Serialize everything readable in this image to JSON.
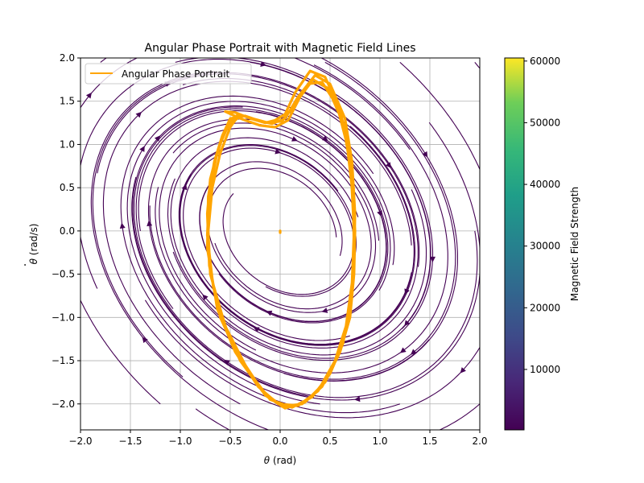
{
  "chart_data": {
    "type": "line",
    "title": "Angular Phase Portrait with Magnetic Field Lines",
    "xlabel_symbol": "θ",
    "xlabel_unit": "(rad)",
    "ylabel_symbol": "θ",
    "ylabel_dot": "·",
    "ylabel_unit": "(rad/s)",
    "xlim": [
      -2.0,
      2.0
    ],
    "ylim": [
      -2.3,
      2.0
    ],
    "x_ticks": [
      -2.0,
      -1.5,
      -1.0,
      -0.5,
      0.0,
      0.5,
      1.0,
      1.5,
      2.0
    ],
    "x_tick_labels": [
      "−2.0",
      "−1.5",
      "−1.0",
      "−0.5",
      "0.0",
      "0.5",
      "1.0",
      "1.5",
      "2.0"
    ],
    "y_ticks": [
      -2.0,
      -1.5,
      -1.0,
      -0.5,
      0.0,
      0.5,
      1.0,
      1.5,
      2.0
    ],
    "y_tick_labels": [
      "−2.0",
      "−1.5",
      "−1.0",
      "−0.5",
      "0.0",
      "0.5",
      "1.0",
      "1.5",
      "2.0"
    ],
    "grid": true,
    "legend": {
      "placement": "top-left",
      "entries": [
        "Angular Phase Portrait"
      ]
    },
    "series": [
      {
        "name": "Angular Phase Portrait",
        "color": "#FFA500",
        "points": [
          [
            0.0,
            0.0
          ],
          [
            0.0,
            -0.02
          ],
          [
            -0.4,
            1.3
          ],
          [
            -0.55,
            1.38
          ],
          [
            -0.45,
            1.37
          ],
          [
            -0.3,
            1.3
          ],
          [
            -0.15,
            1.25
          ],
          [
            -0.05,
            1.28
          ],
          [
            0.05,
            1.35
          ],
          [
            0.15,
            1.6
          ],
          [
            0.3,
            1.85
          ],
          [
            0.45,
            1.78
          ],
          [
            0.6,
            1.4
          ],
          [
            0.68,
            1.0
          ],
          [
            0.73,
            0.5
          ],
          [
            0.75,
            0.0
          ],
          [
            0.74,
            -0.5
          ],
          [
            0.7,
            -1.0
          ],
          [
            0.6,
            -1.4
          ],
          [
            0.45,
            -1.75
          ],
          [
            0.25,
            -1.98
          ],
          [
            0.05,
            -2.05
          ],
          [
            -0.15,
            -1.9
          ],
          [
            -0.35,
            -1.55
          ],
          [
            -0.55,
            -1.1
          ],
          [
            -0.7,
            -0.5
          ],
          [
            -0.72,
            0.0
          ],
          [
            -0.68,
            0.5
          ],
          [
            -0.6,
            0.9
          ],
          [
            -0.5,
            1.2
          ],
          [
            -0.45,
            1.28
          ],
          [
            -0.42,
            1.31
          ],
          [
            -0.35,
            1.28
          ],
          [
            -0.2,
            1.22
          ],
          [
            -0.05,
            1.2
          ],
          [
            0.08,
            1.28
          ],
          [
            0.2,
            1.55
          ],
          [
            0.33,
            1.75
          ],
          [
            0.48,
            1.65
          ],
          [
            0.63,
            1.25
          ],
          [
            0.71,
            0.7
          ],
          [
            0.74,
            0.0
          ],
          [
            0.72,
            -0.6
          ],
          [
            0.66,
            -1.1
          ],
          [
            0.55,
            -1.5
          ],
          [
            0.38,
            -1.85
          ],
          [
            0.18,
            -2.02
          ],
          [
            -0.02,
            -2.0
          ],
          [
            -0.22,
            -1.8
          ],
          [
            -0.45,
            -1.4
          ],
          [
            -0.63,
            -0.9
          ],
          [
            -0.73,
            -0.2
          ],
          [
            -0.72,
            0.4
          ],
          [
            -0.66,
            0.8
          ],
          [
            -0.58,
            1.1
          ],
          [
            -0.5,
            1.3
          ],
          [
            -0.35,
            1.33
          ],
          [
            -0.2,
            1.27
          ],
          [
            -0.08,
            1.24
          ],
          [
            0.05,
            1.3
          ],
          [
            0.18,
            1.55
          ],
          [
            0.35,
            1.8
          ],
          [
            0.5,
            1.7
          ],
          [
            0.65,
            1.3
          ],
          [
            0.72,
            0.8
          ],
          [
            0.75,
            0.2
          ],
          [
            0.74,
            -0.4
          ],
          [
            0.69,
            -1.0
          ],
          [
            0.58,
            -1.45
          ],
          [
            0.42,
            -1.8
          ],
          [
            0.22,
            -2.0
          ],
          [
            0.02,
            -2.03
          ],
          [
            -0.18,
            -1.85
          ],
          [
            -0.4,
            -1.5
          ],
          [
            -0.6,
            -1.0
          ],
          [
            -0.71,
            -0.4
          ],
          [
            -0.73,
            0.2
          ],
          [
            -0.7,
            0.6
          ],
          [
            -0.62,
            0.95
          ],
          [
            -0.52,
            1.22
          ],
          [
            -0.42,
            1.35
          ],
          [
            -0.28,
            1.3
          ],
          [
            -0.12,
            1.25
          ],
          [
            0.02,
            1.27
          ],
          [
            0.14,
            1.45
          ],
          [
            0.28,
            1.7
          ],
          [
            0.42,
            1.72
          ],
          [
            0.57,
            1.45
          ],
          [
            0.67,
            1.0
          ],
          [
            0.73,
            0.4
          ],
          [
            0.74,
            -0.2
          ],
          [
            0.71,
            -0.8
          ],
          [
            0.63,
            -1.3
          ],
          [
            0.5,
            -1.65
          ],
          [
            0.32,
            -1.92
          ],
          [
            0.12,
            -2.04
          ],
          [
            -0.1,
            -1.95
          ],
          [
            -0.3,
            -1.65
          ],
          [
            -0.52,
            -1.2
          ],
          [
            -0.67,
            -0.65
          ],
          [
            -0.73,
            -0.05
          ],
          [
            -0.71,
            0.45
          ],
          [
            -0.64,
            0.85
          ],
          [
            -0.56,
            1.15
          ],
          [
            -0.48,
            1.3
          ]
        ]
      }
    ],
    "field_lines": {
      "name": "Magnetic Field Lines",
      "color": "#440154"
    },
    "colorbar": {
      "label": "Magnetic Field Strength",
      "range": [
        200,
        60500
      ],
      "ticks": [
        10000,
        20000,
        30000,
        40000,
        50000,
        60000
      ],
      "tick_labels": [
        "10000",
        "20000",
        "30000",
        "40000",
        "50000",
        "60000"
      ],
      "colormap": "viridis"
    }
  }
}
